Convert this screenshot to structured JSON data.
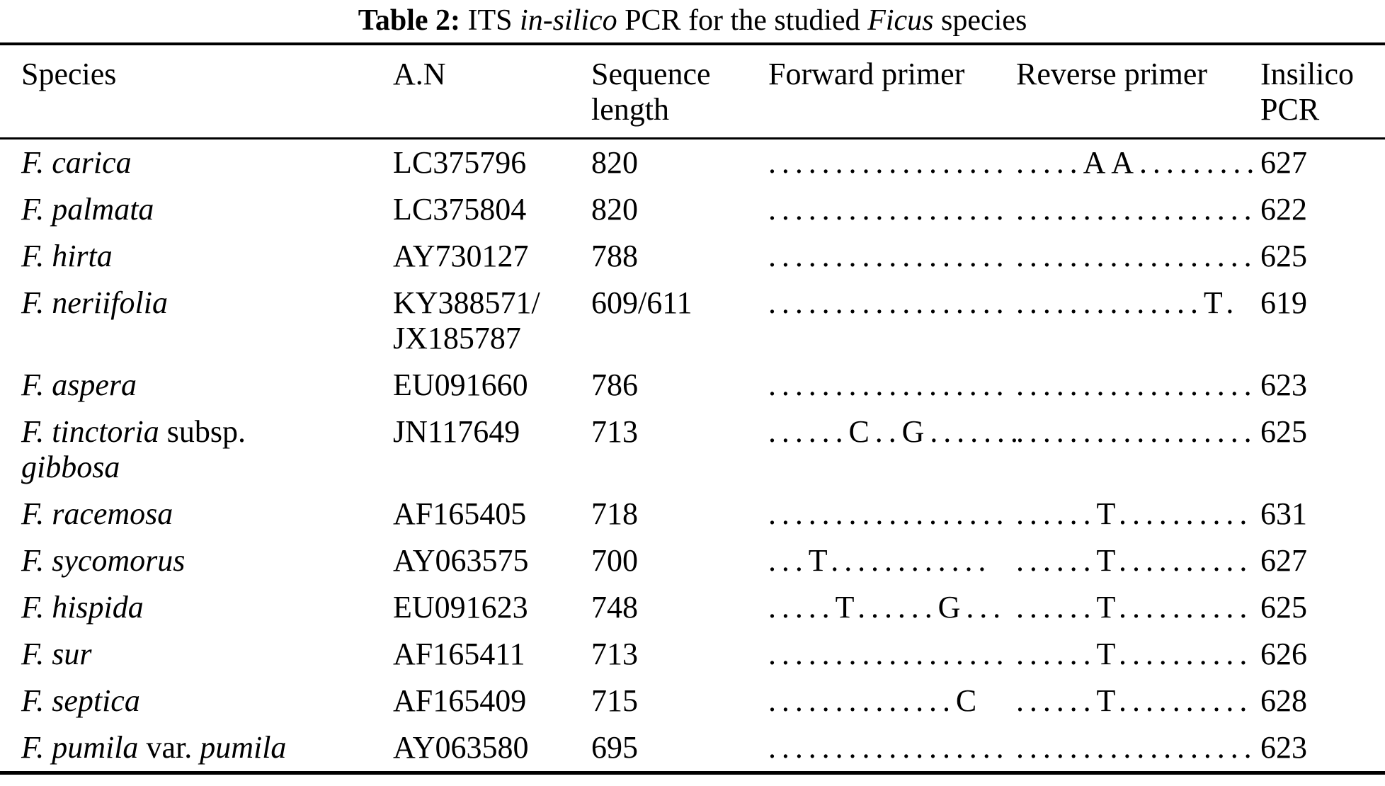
{
  "title": {
    "segments": [
      {
        "text": "Table 2:",
        "bold": true,
        "italic": false
      },
      {
        "text": " ITS ",
        "bold": false,
        "italic": false
      },
      {
        "text": "in-silico",
        "bold": false,
        "italic": true
      },
      {
        "text": " PCR for the studied ",
        "bold": false,
        "italic": false
      },
      {
        "text": "Ficus",
        "bold": false,
        "italic": true
      },
      {
        "text": " species",
        "bold": false,
        "italic": false
      }
    ]
  },
  "table": {
    "columns": [
      "Species",
      "A.N",
      "Sequence length",
      "Forward primer",
      "Reverse primer",
      "Insilico PCR"
    ],
    "rows": [
      {
        "species": [
          {
            "text": "F. carica",
            "italic": true
          }
        ],
        "accession": "LC375796",
        "sequence_length": "820",
        "forward_primer": "..................",
        "reverse_primer": ".....AA.........",
        "insilico_pcr": "627"
      },
      {
        "species": [
          {
            "text": "F. palmata",
            "italic": true
          }
        ],
        "accession": "LC375804",
        "sequence_length": "820",
        "forward_primer": "..................",
        "reverse_primer": "..................",
        "insilico_pcr": "622"
      },
      {
        "species": [
          {
            "text": "F. hirta",
            "italic": true
          }
        ],
        "accession": "AY730127",
        "sequence_length": "788",
        "forward_primer": "..................",
        "reverse_primer": "..................",
        "insilico_pcr": "625"
      },
      {
        "species": [
          {
            "text": "F. neriifolia",
            "italic": true
          }
        ],
        "accession": "KY388571/\nJX185787",
        "sequence_length": "609/611",
        "forward_primer": "..................",
        "reverse_primer": "..............T.",
        "insilico_pcr": "619"
      },
      {
        "species": [
          {
            "text": "F. aspera",
            "italic": true
          }
        ],
        "accession": "EU091660",
        "sequence_length": "786",
        "forward_primer": "..................",
        "reverse_primer": "..................",
        "insilico_pcr": "623"
      },
      {
        "species": [
          {
            "text": "F. tinctoria",
            "italic": true
          },
          {
            "text": " subsp.",
            "italic": false
          },
          {
            "break": true
          },
          {
            "text": "gibbosa",
            "italic": true
          }
        ],
        "accession": "JN117649",
        "sequence_length": "713",
        "forward_primer": "......C..G.......",
        "reverse_primer": "..................",
        "insilico_pcr": "625"
      },
      {
        "species": [
          {
            "text": "F. racemosa",
            "italic": true
          }
        ],
        "accession": "AF165405",
        "sequence_length": "718",
        "forward_primer": "..................",
        "reverse_primer": "......T..........",
        "insilico_pcr": "631"
      },
      {
        "species": [
          {
            "text": "F. sycomorus",
            "italic": true
          }
        ],
        "accession": "AY063575",
        "sequence_length": "700",
        "forward_primer": "...T............",
        "reverse_primer": "......T..........",
        "insilico_pcr": "627"
      },
      {
        "species": [
          {
            "text": "F. hispida",
            "italic": true
          }
        ],
        "accession": "EU091623",
        "sequence_length": "748",
        "forward_primer": ".....T......G...",
        "reverse_primer": "......T..........",
        "insilico_pcr": "625"
      },
      {
        "species": [
          {
            "text": "F. sur",
            "italic": true
          }
        ],
        "accession": "AF165411",
        "sequence_length": "713",
        "forward_primer": "..................",
        "reverse_primer": "......T..........",
        "insilico_pcr": "626"
      },
      {
        "species": [
          {
            "text": "F. septica",
            "italic": true
          }
        ],
        "accession": "AF165409",
        "sequence_length": "715",
        "forward_primer": "..............C",
        "reverse_primer": "......T..........",
        "insilico_pcr": "628"
      },
      {
        "species": [
          {
            "text": "F. pumila",
            "italic": true
          },
          {
            "text": " var. ",
            "italic": false
          },
          {
            "text": "pumila",
            "italic": true
          }
        ],
        "accession": "AY063580",
        "sequence_length": "695",
        "forward_primer": "..................",
        "reverse_primer": "..................",
        "insilico_pcr": "623"
      }
    ]
  }
}
